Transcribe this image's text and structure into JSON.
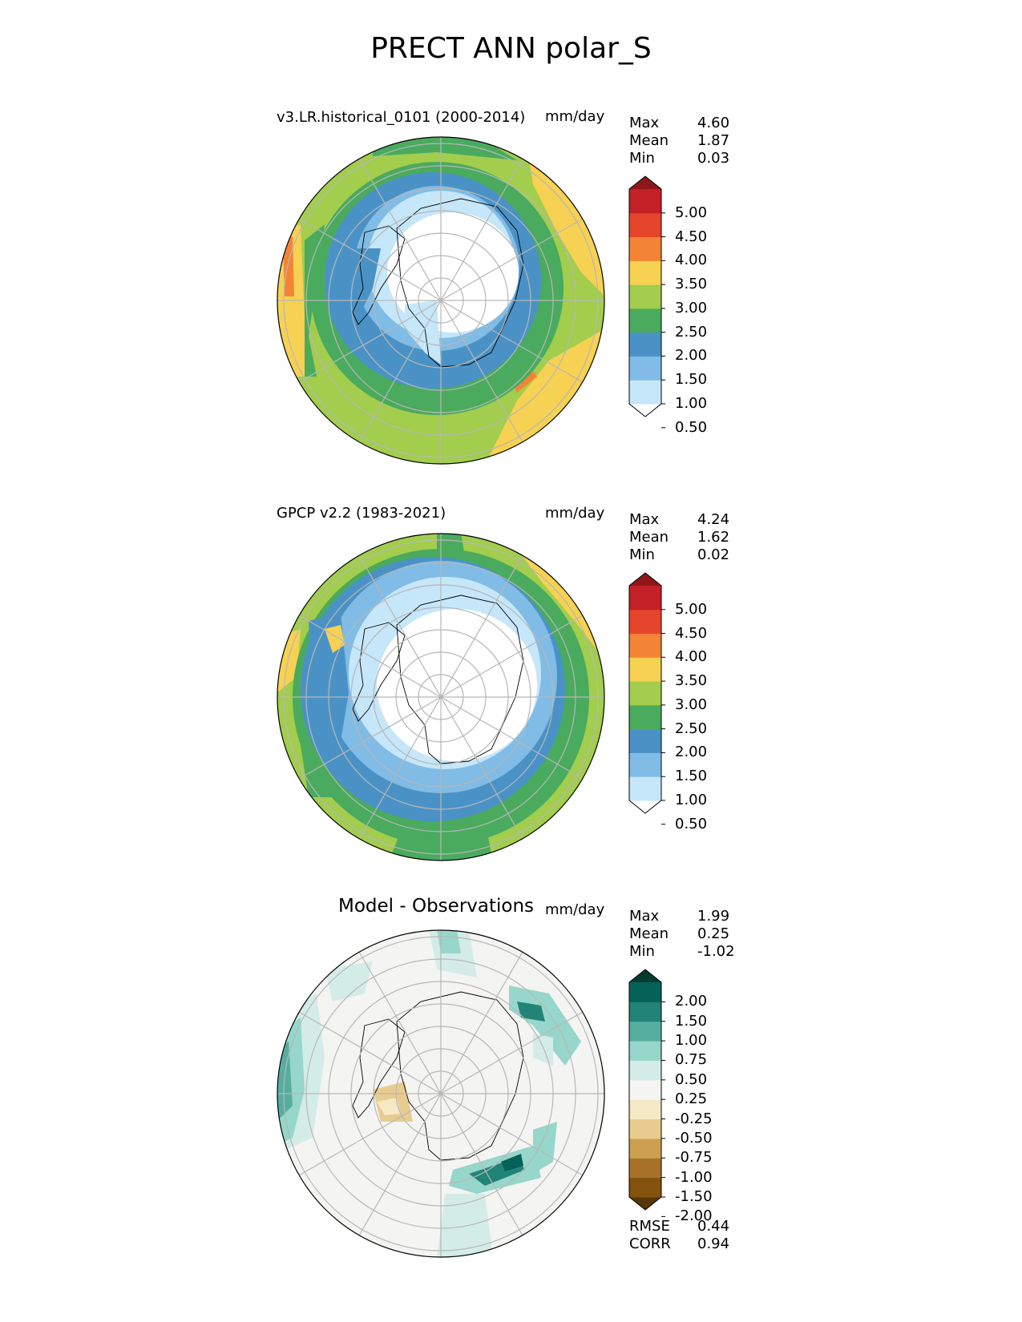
{
  "title": "PRECT ANN polar_S",
  "panels": [
    {
      "id": "model",
      "left_title": "v3.LR.historical_0101 (2000-2014)",
      "units": "mm/day",
      "stats": [
        {
          "label": "Max",
          "value": "4.60"
        },
        {
          "label": "Mean",
          "value": "1.87"
        },
        {
          "label": "Min",
          "value": "0.03"
        }
      ],
      "colorbar": {
        "colors": [
          "#ffffff",
          "#c6e6f9",
          "#80bce6",
          "#4a92c6",
          "#4aaa5e",
          "#a2cd4d",
          "#f7d152",
          "#f48435",
          "#e7442c",
          "#c32127",
          "#8f1719"
        ],
        "tick_labels": [
          "5.00",
          "4.50",
          "4.00",
          "3.50",
          "3.00",
          "2.50",
          "2.00",
          "1.50",
          "1.00",
          "0.50"
        ]
      }
    },
    {
      "id": "obs",
      "left_title": "GPCP v2.2 (1983-2021)",
      "units": "mm/day",
      "stats": [
        {
          "label": "Max",
          "value": "4.24"
        },
        {
          "label": "Mean",
          "value": "1.62"
        },
        {
          "label": "Min",
          "value": "0.02"
        }
      ],
      "colorbar": {
        "colors": [
          "#ffffff",
          "#c6e6f9",
          "#80bce6",
          "#4a92c6",
          "#4aaa5e",
          "#a2cd4d",
          "#f7d152",
          "#f48435",
          "#e7442c",
          "#c32127",
          "#8f1719"
        ],
        "tick_labels": [
          "5.00",
          "4.50",
          "4.00",
          "3.50",
          "3.00",
          "2.50",
          "2.00",
          "1.50",
          "1.00",
          "0.50"
        ]
      }
    },
    {
      "id": "diff",
      "center_title": "Model - Observations",
      "units": "mm/day",
      "stats": [
        {
          "label": "Max",
          "value": "1.99"
        },
        {
          "label": "Mean",
          "value": "0.25"
        },
        {
          "label": "Min",
          "value": "-1.02"
        }
      ],
      "colorbar": {
        "colors": [
          "#583607",
          "#84520f",
          "#a8712a",
          "#cba050",
          "#e8cc8f",
          "#f5e8c4",
          "#f4f4f2",
          "#d4ece8",
          "#97d6ca",
          "#56ae9f",
          "#218477",
          "#046258",
          "#033b30"
        ],
        "tick_labels": [
          "2.00",
          "1.50",
          "1.00",
          "0.75",
          "0.50",
          "0.25",
          "-0.25",
          "-0.50",
          "-0.75",
          "-1.00",
          "-1.50",
          "-2.00"
        ]
      },
      "bottom_stats": [
        {
          "label": "RMSE",
          "value": "0.44"
        },
        {
          "label": "CORR",
          "value": "0.94"
        }
      ]
    }
  ]
}
